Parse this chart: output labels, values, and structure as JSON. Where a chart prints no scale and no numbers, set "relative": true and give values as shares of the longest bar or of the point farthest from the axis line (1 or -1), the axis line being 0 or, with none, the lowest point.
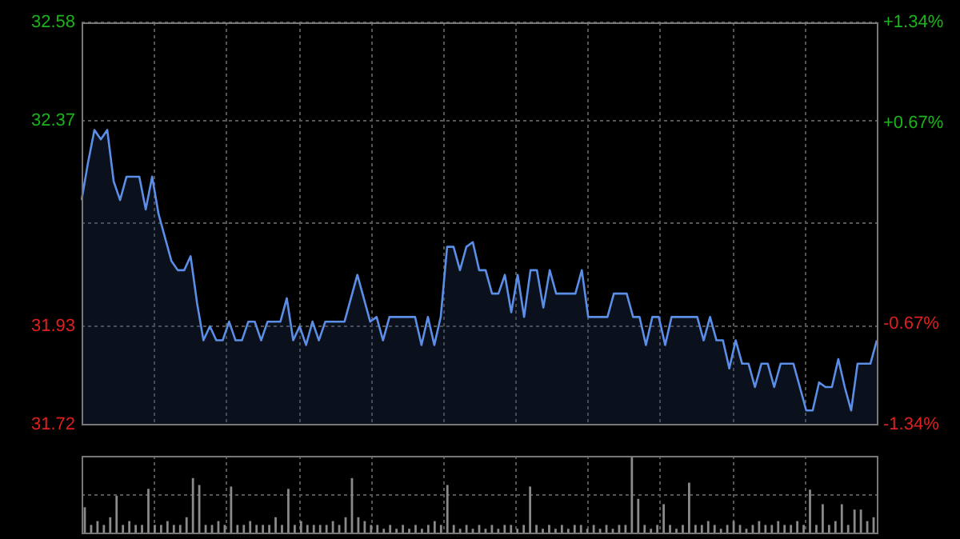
{
  "chart_data": [
    {
      "type": "area",
      "categories": [
        null,
        null,
        null,
        null,
        null,
        null,
        null,
        null,
        null,
        null,
        null,
        null,
        null,
        null,
        null,
        null,
        null,
        null,
        null,
        null,
        null,
        null,
        null,
        null,
        null,
        null,
        null,
        null,
        null,
        null,
        null,
        null,
        null,
        null,
        null,
        null,
        null,
        null,
        null,
        null,
        null,
        null,
        null,
        null,
        null,
        null,
        null,
        null,
        null,
        null,
        null,
        null,
        null,
        null,
        null,
        null,
        null,
        null,
        null,
        null,
        null,
        null,
        null,
        null,
        null,
        null,
        null,
        null,
        null,
        null,
        null,
        null,
        null,
        null,
        null,
        null,
        null,
        null,
        null,
        null,
        null,
        null,
        null,
        null,
        null,
        null,
        null,
        null,
        null,
        null,
        null,
        null,
        null,
        null,
        null,
        null,
        null,
        null,
        null,
        null,
        null,
        null,
        null,
        null,
        null,
        null,
        null,
        null,
        null,
        null,
        null,
        null,
        null,
        null,
        null,
        null,
        null,
        null,
        null,
        null,
        null,
        null,
        null,
        null,
        null
      ],
      "series": [
        {
          "color": "#5b8ee6",
          "values": [
            32.2,
            32.28,
            32.35,
            32.33,
            32.35,
            32.24,
            32.2,
            32.25,
            32.25,
            32.25,
            32.18,
            32.25,
            32.17,
            32.12,
            32.07,
            32.05,
            32.05,
            32.08,
            31.98,
            31.9,
            31.93,
            31.9,
            31.9,
            31.94,
            31.9,
            31.9,
            31.94,
            31.94,
            31.9,
            31.94,
            31.94,
            31.94,
            31.99,
            31.9,
            31.93,
            31.89,
            31.94,
            31.9,
            31.94,
            31.94,
            31.94,
            31.94,
            31.99,
            32.04,
            31.99,
            31.94,
            31.95,
            31.9,
            31.95,
            31.95,
            31.95,
            31.95,
            31.95,
            31.89,
            31.95,
            31.89,
            31.95,
            32.1,
            32.1,
            32.05,
            32.1,
            32.11,
            32.05,
            32.05,
            32.0,
            32.0,
            32.04,
            31.96,
            32.04,
            31.95,
            32.05,
            32.05,
            31.97,
            32.05,
            32.0,
            32.0,
            32.0,
            32.0,
            32.05,
            31.95,
            31.95,
            31.95,
            31.95,
            32.0,
            32.0,
            32.0,
            31.95,
            31.95,
            31.89,
            31.95,
            31.95,
            31.89,
            31.95,
            31.95,
            31.95,
            31.95,
            31.95,
            31.9,
            31.95,
            31.9,
            31.9,
            31.84,
            31.9,
            31.85,
            31.85,
            31.8,
            31.85,
            31.85,
            31.8,
            31.85,
            31.85,
            31.85,
            31.8,
            31.75,
            31.75,
            31.81,
            31.8,
            31.8,
            31.86,
            31.8,
            31.75,
            31.85,
            31.85,
            31.85,
            31.9
          ]
        }
      ],
      "ylim": [
        31.72,
        32.58
      ],
      "yticks": [
        32.58,
        32.37,
        {
          "value": 32.15,
          "label": null
        },
        31.93,
        31.72
      ],
      "y2lim": [
        -1.34,
        1.34
      ],
      "y2ticks": [
        {
          "value": 1.34,
          "label": "+1.34%"
        },
        {
          "value": 0.67,
          "label": "+0.67%"
        },
        {
          "value": 0,
          "label": null
        },
        {
          "value": -0.67,
          "label": "-0.67%"
        },
        {
          "value": -1.34,
          "label": "-1.34%"
        }
      ],
      "grid": true,
      "tick_labels": "y"
    },
    {
      "type": "bar",
      "relative": true,
      "categories": [
        null,
        null,
        null,
        null,
        null,
        null,
        null,
        null,
        null,
        null,
        null,
        null,
        null,
        null,
        null,
        null,
        null,
        null,
        null,
        null,
        null,
        null,
        null,
        null,
        null,
        null,
        null,
        null,
        null,
        null,
        null,
        null,
        null,
        null,
        null,
        null,
        null,
        null,
        null,
        null,
        null,
        null,
        null,
        null,
        null,
        null,
        null,
        null,
        null,
        null,
        null,
        null,
        null,
        null,
        null,
        null,
        null,
        null,
        null,
        null,
        null,
        null,
        null,
        null,
        null,
        null,
        null,
        null,
        null,
        null,
        null,
        null,
        null,
        null,
        null,
        null,
        null,
        null,
        null,
        null,
        null,
        null,
        null,
        null,
        null,
        null,
        null,
        null,
        null,
        null,
        null,
        null,
        null,
        null,
        null,
        null,
        null,
        null,
        null,
        null,
        null,
        null,
        null,
        null,
        null,
        null,
        null,
        null,
        null,
        null,
        null,
        null,
        null,
        null,
        null,
        null,
        null,
        null,
        null,
        null,
        null,
        null,
        null,
        null,
        null
      ],
      "series": [
        {
          "color": "#8a8a8a",
          "values": [
            0.33,
            0.1,
            0.15,
            0.1,
            0.2,
            0.48,
            0.1,
            0.15,
            0.1,
            0.1,
            0.57,
            0.1,
            0.1,
            0.15,
            0.1,
            0.1,
            0.2,
            0.71,
            0.62,
            0.1,
            0.1,
            0.15,
            0.1,
            0.6,
            0.1,
            0.1,
            0.15,
            0.1,
            0.1,
            0.1,
            0.2,
            0.1,
            0.57,
            0.1,
            0.15,
            0.1,
            0.1,
            0.1,
            0.1,
            0.15,
            0.1,
            0.2,
            0.71,
            0.2,
            0.15,
            0.1,
            0.1,
            0.05,
            0.1,
            0.05,
            0.1,
            0.05,
            0.1,
            0.05,
            0.1,
            0.15,
            0.1,
            0.62,
            0.1,
            0.05,
            0.1,
            0.05,
            0.1,
            0.05,
            0.1,
            0.05,
            0.1,
            0.1,
            0.05,
            0.1,
            0.6,
            0.1,
            0.05,
            0.1,
            0.05,
            0.1,
            0.05,
            0.1,
            0.1,
            0.05,
            0.1,
            0.05,
            0.1,
            0.05,
            0.1,
            0.1,
            1,
            0.44,
            0.1,
            0.05,
            0.1,
            0.37,
            0.1,
            0.05,
            0.1,
            0.65,
            0.1,
            0.1,
            0.15,
            0.1,
            0.05,
            0.1,
            0.15,
            0.1,
            0.05,
            0.1,
            0.15,
            0.1,
            0.1,
            0.15,
            0.1,
            0.1,
            0.15,
            0.1,
            0.56,
            0.1,
            0.37,
            0.1,
            0.15,
            0.37,
            0.1,
            0.3,
            0.3,
            0.15,
            0.2
          ]
        }
      ],
      "grid": true
    }
  ]
}
